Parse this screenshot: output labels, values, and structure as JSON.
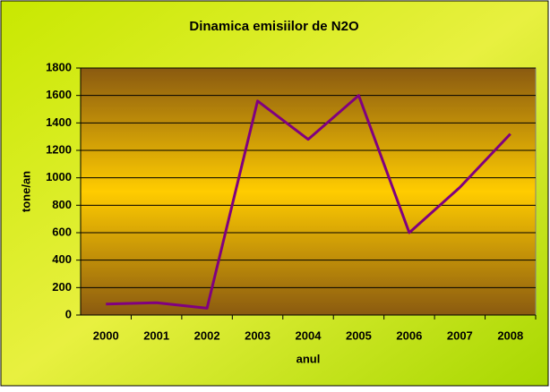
{
  "chart_data": {
    "type": "line",
    "title": "Dinamica emisiilor de N2O",
    "x_label": "anul",
    "y_label": "tone/an",
    "categories": [
      "2000",
      "2001",
      "2002",
      "2003",
      "2004",
      "2005",
      "2006",
      "2007",
      "2008"
    ],
    "values": [
      80,
      90,
      50,
      1560,
      1280,
      1600,
      600,
      930,
      1320
    ],
    "color": "#800080",
    "ylim": [
      0,
      1800
    ],
    "yticks": [
      0,
      200,
      400,
      600,
      800,
      1000,
      1200,
      1400,
      1600,
      1800
    ],
    "grid": true
  }
}
